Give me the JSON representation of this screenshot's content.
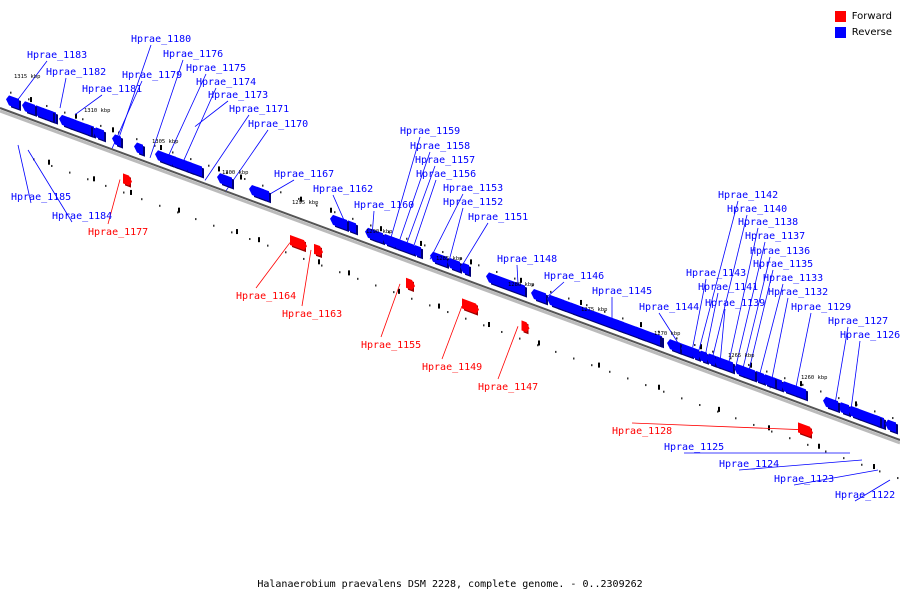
{
  "caption": "Halanaerobium praevalens DSM 2228, complete genome. - 0..2309262",
  "legend": [
    {
      "label": "Forward",
      "color": "#ff0000"
    },
    {
      "label": "Reverse",
      "color": "#0000ff"
    }
  ],
  "colors": {
    "forward": "#ff0000",
    "reverse": "#0000ff",
    "backbone": "#555555"
  },
  "ticks": [
    {
      "label": "1315 kbp"
    },
    {
      "label": "1310 kbp"
    },
    {
      "label": "1305 kbp"
    },
    {
      "label": "1300 kbp"
    },
    {
      "label": "1295 kbp"
    },
    {
      "label": "1290 kbp"
    },
    {
      "label": "1285 kbp"
    },
    {
      "label": "1280 kbp"
    },
    {
      "label": "1275 kbp"
    },
    {
      "label": "1270 kbp"
    },
    {
      "label": "1265 kbp"
    },
    {
      "label": "1260 kbp"
    }
  ],
  "genes": [
    {
      "name": "Hprae_1183",
      "strand": "reverse"
    },
    {
      "name": "Hprae_1182",
      "strand": "reverse"
    },
    {
      "name": "Hprae_1181",
      "strand": "reverse"
    },
    {
      "name": "Hprae_1180",
      "strand": "reverse"
    },
    {
      "name": "Hprae_1179",
      "strand": "reverse"
    },
    {
      "name": "Hprae_1176",
      "strand": "reverse"
    },
    {
      "name": "Hprae_1175",
      "strand": "reverse"
    },
    {
      "name": "Hprae_1174",
      "strand": "reverse"
    },
    {
      "name": "Hprae_1173",
      "strand": "reverse"
    },
    {
      "name": "Hprae_1171",
      "strand": "reverse"
    },
    {
      "name": "Hprae_1170",
      "strand": "reverse"
    },
    {
      "name": "Hprae_1185",
      "strand": "reverse"
    },
    {
      "name": "Hprae_1184",
      "strand": "reverse"
    },
    {
      "name": "Hprae_1177",
      "strand": "forward"
    },
    {
      "name": "Hprae_1167",
      "strand": "reverse"
    },
    {
      "name": "Hprae_1162",
      "strand": "reverse"
    },
    {
      "name": "Hprae_1164",
      "strand": "forward"
    },
    {
      "name": "Hprae_1163",
      "strand": "forward"
    },
    {
      "name": "Hprae_1160",
      "strand": "reverse"
    },
    {
      "name": "Hprae_1159",
      "strand": "reverse"
    },
    {
      "name": "Hprae_1158",
      "strand": "reverse"
    },
    {
      "name": "Hprae_1157",
      "strand": "reverse"
    },
    {
      "name": "Hprae_1156",
      "strand": "reverse"
    },
    {
      "name": "Hprae_1153",
      "strand": "reverse"
    },
    {
      "name": "Hprae_1152",
      "strand": "reverse"
    },
    {
      "name": "Hprae_1151",
      "strand": "reverse"
    },
    {
      "name": "Hprae_1155",
      "strand": "forward"
    },
    {
      "name": "Hprae_1149",
      "strand": "forward"
    },
    {
      "name": "Hprae_1148",
      "strand": "reverse"
    },
    {
      "name": "Hprae_1147",
      "strand": "forward"
    },
    {
      "name": "Hprae_1146",
      "strand": "reverse"
    },
    {
      "name": "Hprae_1145",
      "strand": "reverse"
    },
    {
      "name": "Hprae_1144",
      "strand": "reverse"
    },
    {
      "name": "Hprae_1143",
      "strand": "reverse"
    },
    {
      "name": "Hprae_1142",
      "strand": "reverse"
    },
    {
      "name": "Hprae_1141",
      "strand": "reverse"
    },
    {
      "name": "Hprae_1140",
      "strand": "reverse"
    },
    {
      "name": "Hprae_1139",
      "strand": "reverse"
    },
    {
      "name": "Hprae_1138",
      "strand": "reverse"
    },
    {
      "name": "Hprae_1137",
      "strand": "reverse"
    },
    {
      "name": "Hprae_1136",
      "strand": "reverse"
    },
    {
      "name": "Hprae_1135",
      "strand": "reverse"
    },
    {
      "name": "Hprae_1133",
      "strand": "reverse"
    },
    {
      "name": "Hprae_1132",
      "strand": "reverse"
    },
    {
      "name": "Hprae_1129",
      "strand": "reverse"
    },
    {
      "name": "Hprae_1127",
      "strand": "reverse"
    },
    {
      "name": "Hprae_1126",
      "strand": "reverse"
    },
    {
      "name": "Hprae_1128",
      "strand": "forward"
    },
    {
      "name": "Hprae_1125",
      "strand": "reverse"
    },
    {
      "name": "Hprae_1124",
      "strand": "reverse"
    },
    {
      "name": "Hprae_1123",
      "strand": "reverse"
    },
    {
      "name": "Hprae_1122",
      "strand": "reverse"
    }
  ]
}
